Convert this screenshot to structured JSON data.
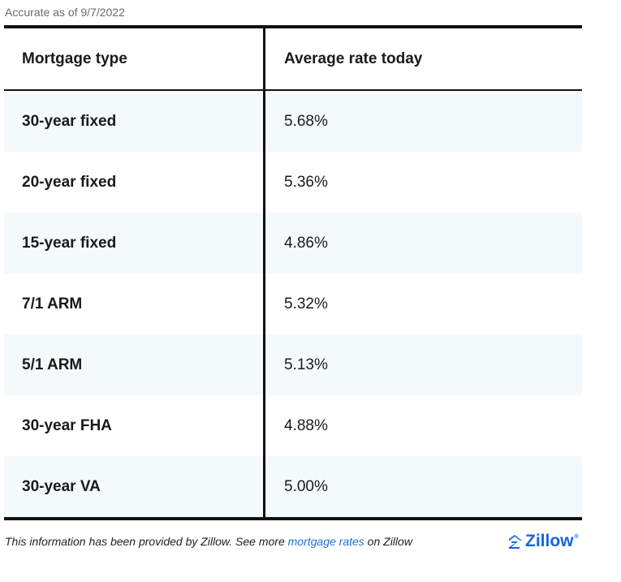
{
  "accurate_note": "Accurate as of 9/7/2022",
  "table": {
    "headers": {
      "type": "Mortgage type",
      "rate": "Average rate today"
    },
    "rows": [
      {
        "type": "30-year fixed",
        "rate": "5.68%"
      },
      {
        "type": "20-year fixed",
        "rate": "5.36%"
      },
      {
        "type": "15-year fixed",
        "rate": "4.86%"
      },
      {
        "type": "7/1 ARM",
        "rate": "5.32%"
      },
      {
        "type": "5/1 ARM",
        "rate": "5.13%"
      },
      {
        "type": "30-year FHA",
        "rate": "4.88%"
      },
      {
        "type": "30-year VA",
        "rate": "5.00%"
      }
    ]
  },
  "footer": {
    "prefix": "This information has been provided by Zillow. See more ",
    "link_text": "mortgage rates",
    "suffix": " on Zillow"
  },
  "logo": {
    "text": "Zillow",
    "icon": "zillow-house-icon",
    "color": "#1566e0"
  },
  "colors": {
    "row_shade": "#f4f9fc",
    "link": "#1f6fd1",
    "border": "#111111"
  }
}
